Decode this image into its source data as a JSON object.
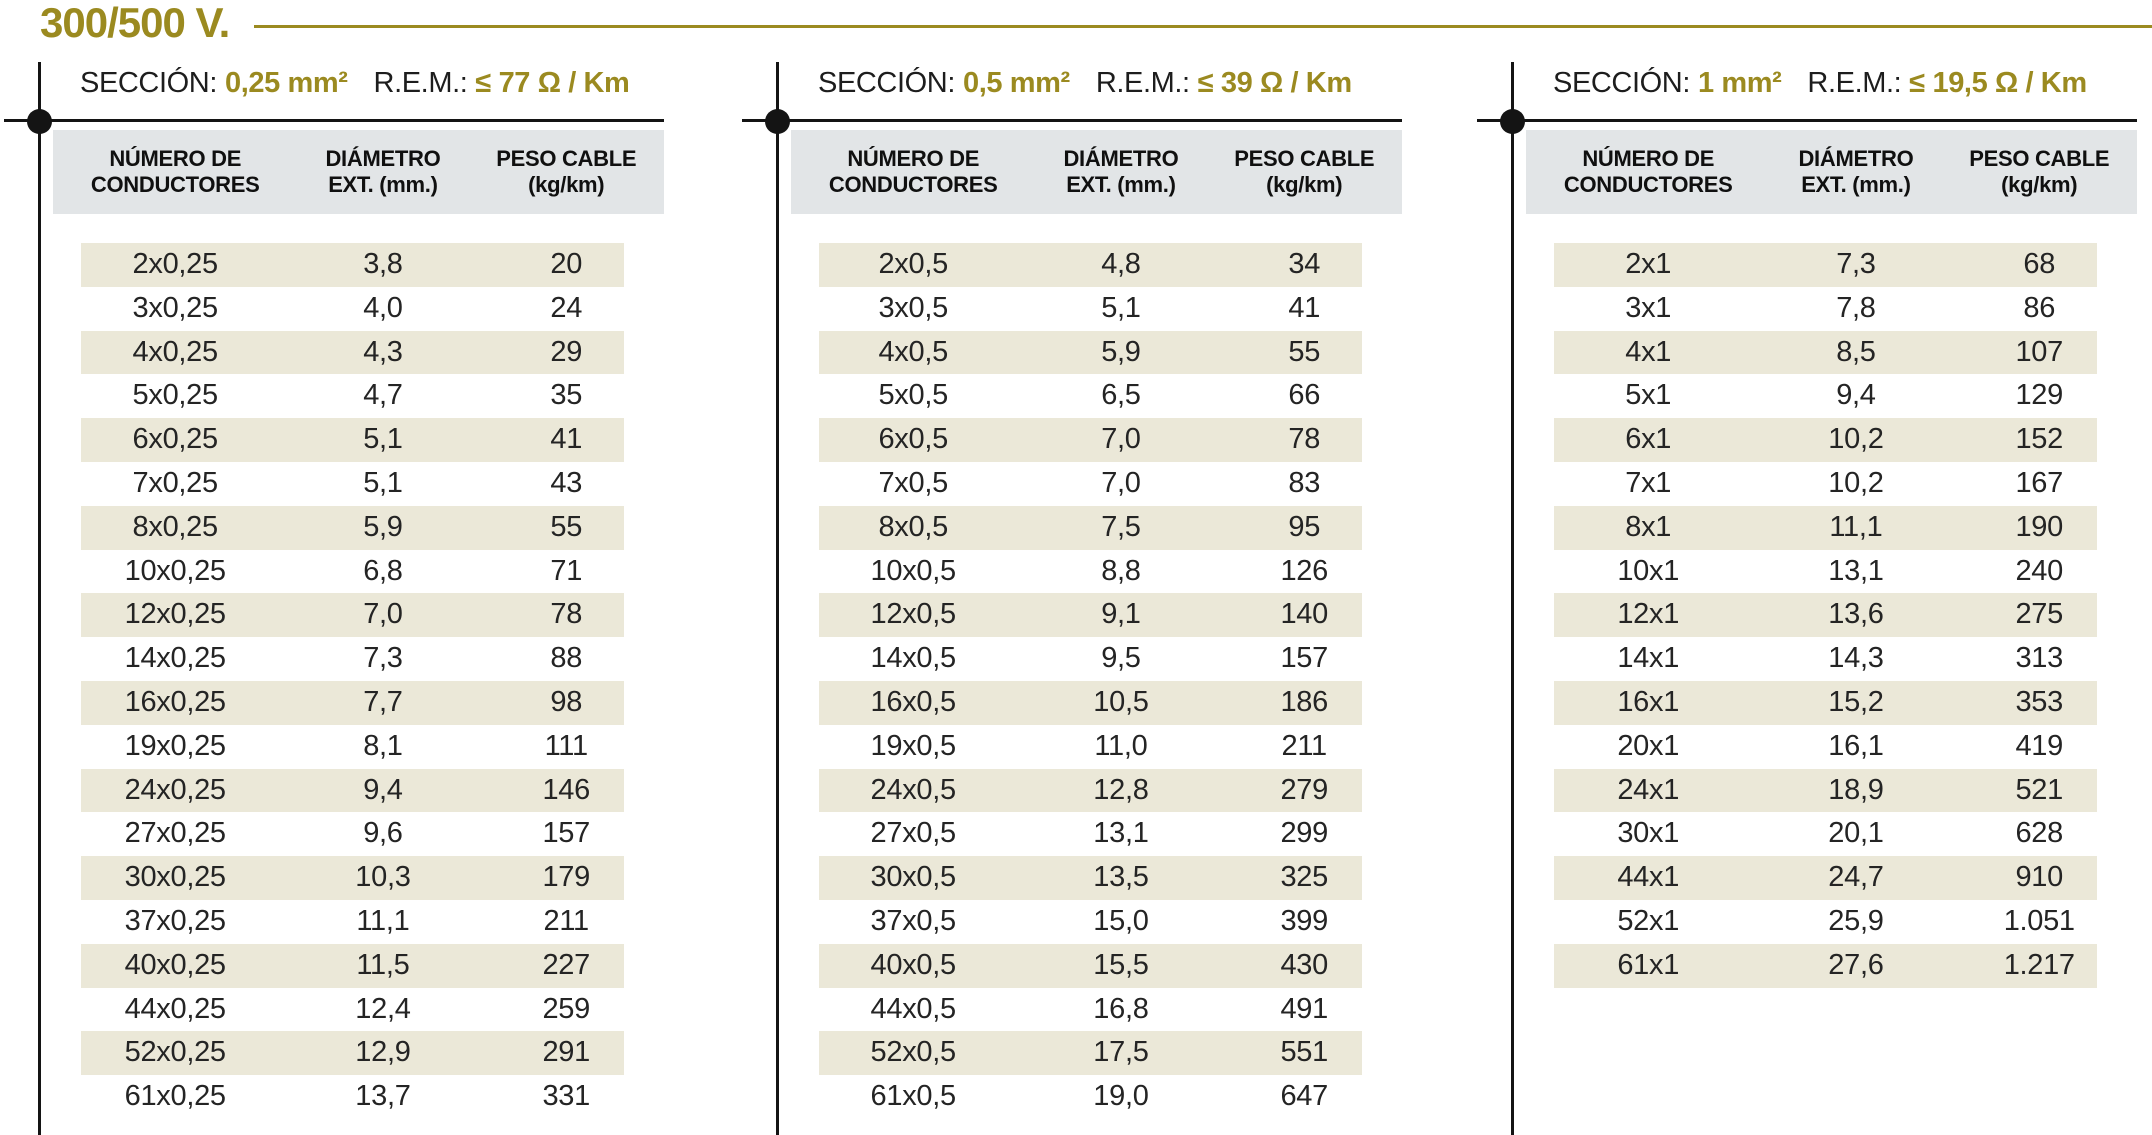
{
  "title": "300/500 V.",
  "colors": {
    "accent": "#9b8a20",
    "stripe": "#ebe8d8",
    "header_bg": "#e2e5e7",
    "rule": "#141414"
  },
  "tables": [
    {
      "section_label": "SECCIÓN:",
      "section_value": "0,25 mm²",
      "rem_label": "R.E.M.:",
      "rem_value": "≤ 77 Ω / Km",
      "columns": [
        {
          "line1": "NÚMERO DE",
          "line2": "CONDUCTORES"
        },
        {
          "line1": "DIÁMETRO",
          "line2": "EXT. (mm.)"
        },
        {
          "line1": "PESO CABLE",
          "line2": "(kg/km)"
        }
      ],
      "rows": [
        [
          "2x0,25",
          "3,8",
          "20"
        ],
        [
          "3x0,25",
          "4,0",
          "24"
        ],
        [
          "4x0,25",
          "4,3",
          "29"
        ],
        [
          "5x0,25",
          "4,7",
          "35"
        ],
        [
          "6x0,25",
          "5,1",
          "41"
        ],
        [
          "7x0,25",
          "5,1",
          "43"
        ],
        [
          "8x0,25",
          "5,9",
          "55"
        ],
        [
          "10x0,25",
          "6,8",
          "71"
        ],
        [
          "12x0,25",
          "7,0",
          "78"
        ],
        [
          "14x0,25",
          "7,3",
          "88"
        ],
        [
          "16x0,25",
          "7,7",
          "98"
        ],
        [
          "19x0,25",
          "8,1",
          "111"
        ],
        [
          "24x0,25",
          "9,4",
          "146"
        ],
        [
          "27x0,25",
          "9,6",
          "157"
        ],
        [
          "30x0,25",
          "10,3",
          "179"
        ],
        [
          "37x0,25",
          "11,1",
          "211"
        ],
        [
          "40x0,25",
          "11,5",
          "227"
        ],
        [
          "44x0,25",
          "12,4",
          "259"
        ],
        [
          "52x0,25",
          "12,9",
          "291"
        ],
        [
          "61x0,25",
          "13,7",
          "331"
        ]
      ]
    },
    {
      "section_label": "SECCIÓN:",
      "section_value": "0,5 mm²",
      "rem_label": "R.E.M.:",
      "rem_value": "≤ 39 Ω / Km",
      "columns": [
        {
          "line1": "NÚMERO DE",
          "line2": "CONDUCTORES"
        },
        {
          "line1": "DIÁMETRO",
          "line2": "EXT. (mm.)"
        },
        {
          "line1": "PESO CABLE",
          "line2": "(kg/km)"
        }
      ],
      "rows": [
        [
          "2x0,5",
          "4,8",
          "34"
        ],
        [
          "3x0,5",
          "5,1",
          "41"
        ],
        [
          "4x0,5",
          "5,9",
          "55"
        ],
        [
          "5x0,5",
          "6,5",
          "66"
        ],
        [
          "6x0,5",
          "7,0",
          "78"
        ],
        [
          "7x0,5",
          "7,0",
          "83"
        ],
        [
          "8x0,5",
          "7,5",
          "95"
        ],
        [
          "10x0,5",
          "8,8",
          "126"
        ],
        [
          "12x0,5",
          "9,1",
          "140"
        ],
        [
          "14x0,5",
          "9,5",
          "157"
        ],
        [
          "16x0,5",
          "10,5",
          "186"
        ],
        [
          "19x0,5",
          "11,0",
          "211"
        ],
        [
          "24x0,5",
          "12,8",
          "279"
        ],
        [
          "27x0,5",
          "13,1",
          "299"
        ],
        [
          "30x0,5",
          "13,5",
          "325"
        ],
        [
          "37x0,5",
          "15,0",
          "399"
        ],
        [
          "40x0,5",
          "15,5",
          "430"
        ],
        [
          "44x0,5",
          "16,8",
          "491"
        ],
        [
          "52x0,5",
          "17,5",
          "551"
        ],
        [
          "61x0,5",
          "19,0",
          "647"
        ]
      ]
    },
    {
      "section_label": "SECCIÓN:",
      "section_value": "1 mm²",
      "rem_label": "R.E.M.:",
      "rem_value": "≤ 19,5 Ω / Km",
      "columns": [
        {
          "line1": "NÚMERO DE",
          "line2": "CONDUCTORES"
        },
        {
          "line1": "DIÁMETRO",
          "line2": "EXT. (mm.)"
        },
        {
          "line1": "PESO CABLE",
          "line2": "(kg/km)"
        }
      ],
      "rows": [
        [
          "2x1",
          "7,3",
          "68"
        ],
        [
          "3x1",
          "7,8",
          "86"
        ],
        [
          "4x1",
          "8,5",
          "107"
        ],
        [
          "5x1",
          "9,4",
          "129"
        ],
        [
          "6x1",
          "10,2",
          "152"
        ],
        [
          "7x1",
          "10,2",
          "167"
        ],
        [
          "8x1",
          "11,1",
          "190"
        ],
        [
          "10x1",
          "13,1",
          "240"
        ],
        [
          "12x1",
          "13,6",
          "275"
        ],
        [
          "14x1",
          "14,3",
          "313"
        ],
        [
          "16x1",
          "15,2",
          "353"
        ],
        [
          "20x1",
          "16,1",
          "419"
        ],
        [
          "24x1",
          "18,9",
          "521"
        ],
        [
          "30x1",
          "20,1",
          "628"
        ],
        [
          "44x1",
          "24,7",
          "910"
        ],
        [
          "52x1",
          "25,9",
          "1.051"
        ],
        [
          "61x1",
          "27,6",
          "1.217"
        ]
      ]
    }
  ]
}
